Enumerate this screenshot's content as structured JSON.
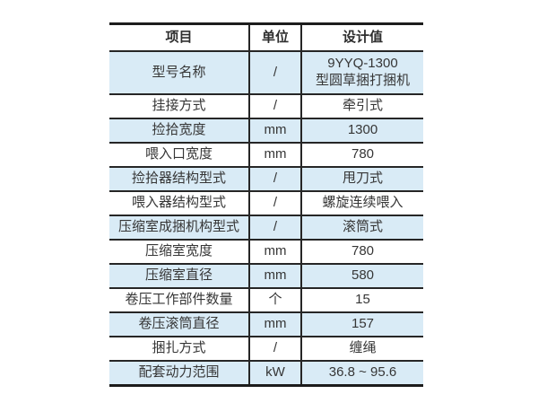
{
  "colors": {
    "row_stripe": "#d9ebf6",
    "border": "#262626",
    "outer_border": "#1c1c1c",
    "text": "#363636",
    "background": "#ffffff"
  },
  "table": {
    "headers": {
      "item": "项目",
      "unit": "单位",
      "value": "设计值"
    },
    "rows": [
      {
        "item": "型号名称",
        "unit": "/",
        "value": "9YYQ-1300\n型圆草捆打捆机"
      },
      {
        "item": "挂接方式",
        "unit": "/",
        "value": "牵引式"
      },
      {
        "item": "捡拾宽度",
        "unit": "mm",
        "value": "1300"
      },
      {
        "item": "喂入口宽度",
        "unit": "mm",
        "value": "780"
      },
      {
        "item": "捡拾器结构型式",
        "unit": "/",
        "value": "甩刀式"
      },
      {
        "item": "喂入器结构型式",
        "unit": "/",
        "value": "螺旋连续喂入"
      },
      {
        "item": "压缩室成捆机构型式",
        "unit": "/",
        "value": "滚筒式"
      },
      {
        "item": "压缩室宽度",
        "unit": "mm",
        "value": "780"
      },
      {
        "item": "压缩室直径",
        "unit": "mm",
        "value": "580"
      },
      {
        "item": "卷压工作部件数量",
        "unit": "个",
        "value": "15"
      },
      {
        "item": "卷压滚筒直径",
        "unit": "mm",
        "value": "157"
      },
      {
        "item": "捆扎方式",
        "unit": "/",
        "value": "缠绳"
      },
      {
        "item": "配套动力范围",
        "unit": "kW",
        "value": "36.8 ~ 95.6"
      }
    ]
  }
}
